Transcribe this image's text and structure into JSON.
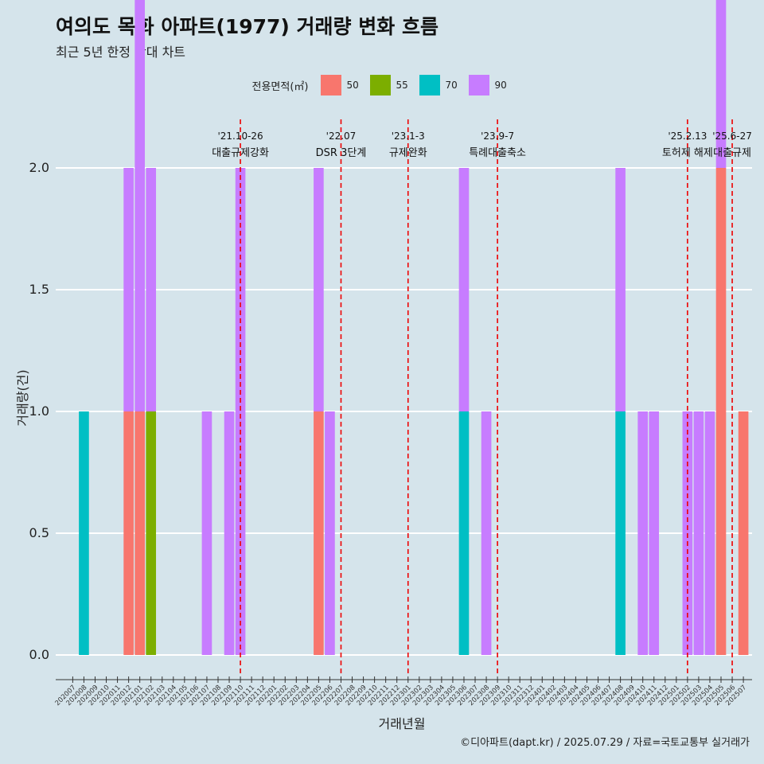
{
  "title": "여의도 목화 아파트(1977) 거래량 변화 흐름",
  "subtitle": "최근 5년 한정 확대 차트",
  "caption": "©디아파트(dapt.kr) / 2025.07.29 / 자료=국토교통부 실거래가",
  "legend": {
    "title": "전용면적(㎡)",
    "items": [
      {
        "label": "50",
        "color": "#F8766D"
      },
      {
        "label": "55",
        "color": "#7CAE00"
      },
      {
        "label": "70",
        "color": "#00BFC4"
      },
      {
        "label": "90",
        "color": "#C77CFF"
      }
    ]
  },
  "chart_data": {
    "type": "bar",
    "xlabel": "거래년월",
    "ylabel": "거래량(건)",
    "ylim": [
      0,
      2
    ],
    "yticks": [
      "0.0",
      "0.5",
      "1.0",
      "1.5",
      "2.0"
    ],
    "categories": [
      "202007",
      "202008",
      "202009",
      "202010",
      "202011",
      "202012",
      "202101",
      "202102",
      "202103",
      "202104",
      "202105",
      "202106",
      "202107",
      "202108",
      "202109",
      "202110",
      "202111",
      "202112",
      "202201",
      "202202",
      "202203",
      "202204",
      "202205",
      "202206",
      "202207",
      "202208",
      "202209",
      "202210",
      "202211",
      "202212",
      "202301",
      "202302",
      "202303",
      "202304",
      "202305",
      "202306",
      "202307",
      "202308",
      "202309",
      "202310",
      "202311",
      "202312",
      "202401",
      "202402",
      "202403",
      "202404",
      "202405",
      "202406",
      "202407",
      "202408",
      "202409",
      "202410",
      "202411",
      "202412",
      "202501",
      "202502",
      "202503",
      "202504",
      "202505",
      "202506",
      "202507"
    ],
    "series": [
      {
        "name": "50",
        "color": "#F8766D",
        "values": [
          0,
          0,
          0,
          0,
          0,
          1,
          1,
          0,
          0,
          0,
          0,
          0,
          0,
          0,
          0,
          0,
          0,
          0,
          0,
          0,
          0,
          0,
          1,
          0,
          0,
          0,
          0,
          0,
          0,
          0,
          0,
          0,
          0,
          0,
          0,
          0,
          0,
          0,
          0,
          0,
          0,
          0,
          0,
          0,
          0,
          0,
          0,
          0,
          0,
          0,
          0,
          0,
          0,
          0,
          0,
          0,
          0,
          0,
          2,
          0,
          1
        ]
      },
      {
        "name": "55",
        "color": "#7CAE00",
        "values": [
          0,
          0,
          0,
          0,
          0,
          0,
          0,
          1,
          0,
          0,
          0,
          0,
          0,
          0,
          0,
          0,
          0,
          0,
          0,
          0,
          0,
          0,
          0,
          0,
          0,
          0,
          0,
          0,
          0,
          0,
          0,
          0,
          0,
          0,
          0,
          0,
          0,
          0,
          0,
          0,
          0,
          0,
          0,
          0,
          0,
          0,
          0,
          0,
          0,
          0,
          0,
          0,
          0,
          0,
          0,
          0,
          0,
          0,
          0,
          0,
          0
        ]
      },
      {
        "name": "70",
        "color": "#00BFC4",
        "values": [
          0,
          1,
          0,
          0,
          0,
          0,
          0,
          0,
          0,
          0,
          0,
          0,
          0,
          0,
          0,
          0,
          0,
          0,
          0,
          0,
          0,
          0,
          0,
          0,
          0,
          0,
          0,
          0,
          0,
          0,
          0,
          0,
          0,
          0,
          0,
          1,
          0,
          0,
          0,
          0,
          0,
          0,
          0,
          0,
          0,
          0,
          0,
          0,
          0,
          1,
          0,
          0,
          0,
          0,
          0,
          0,
          0,
          0,
          0,
          0,
          0
        ]
      },
      {
        "name": "90",
        "color": "#C77CFF",
        "values": [
          0,
          0,
          0,
          0,
          0,
          1,
          2,
          1,
          0,
          0,
          0,
          0,
          1,
          0,
          1,
          2,
          0,
          0,
          0,
          0,
          0,
          0,
          1,
          1,
          0,
          0,
          0,
          0,
          0,
          0,
          0,
          0,
          0,
          0,
          0,
          1,
          0,
          1,
          0,
          0,
          0,
          0,
          0,
          0,
          0,
          0,
          0,
          0,
          0,
          1,
          0,
          1,
          1,
          0,
          0,
          1,
          1,
          1,
          1,
          0,
          0
        ]
      }
    ],
    "events": [
      {
        "date": "'21.10-26",
        "label": "대출규제강화",
        "at": "202110"
      },
      {
        "date": "'22.07",
        "label": "DSR 3단계",
        "at": "202207"
      },
      {
        "date": "'23.1-3",
        "label": "규제완화",
        "at": "202301"
      },
      {
        "date": "'23.9-7",
        "label": "특례대출축소",
        "at": "202309"
      },
      {
        "date": "'25.2.13",
        "label": "토허제 해제",
        "at": "202502"
      },
      {
        "date": "'25.6-27",
        "label": "대출규제",
        "at": "202506"
      }
    ]
  }
}
